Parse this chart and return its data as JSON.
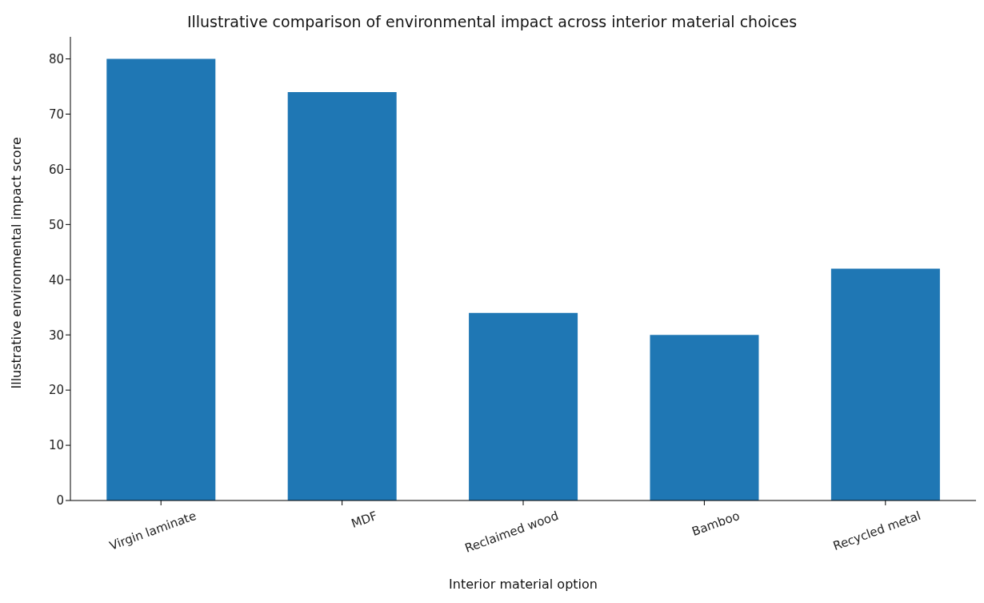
{
  "chart_data": {
    "type": "bar",
    "title": "Illustrative comparison of environmental impact across interior material choices",
    "xlabel": "Interior material option",
    "ylabel": "Illustrative environmental impact score",
    "categories": [
      "Virgin laminate",
      "MDF",
      "Reclaimed wood",
      "Bamboo",
      "Recycled metal"
    ],
    "values": [
      80,
      74,
      34,
      30,
      42
    ],
    "color": "#1f77b4",
    "ylim": [
      0,
      84
    ],
    "yticks": [
      0,
      10,
      20,
      30,
      40,
      50,
      60,
      70,
      80
    ],
    "grid": false,
    "legend": false
  }
}
